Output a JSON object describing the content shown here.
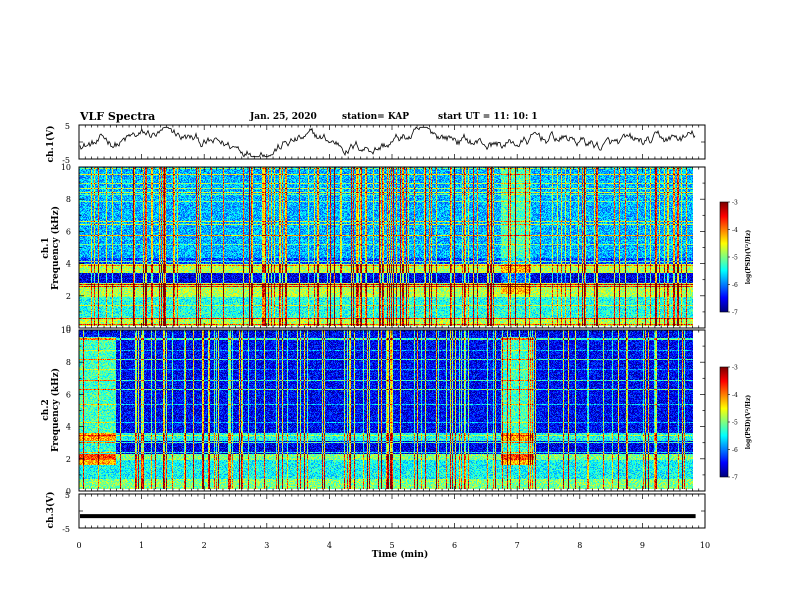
{
  "header": {
    "title": "VLF Spectra",
    "date": "Jan. 25, 2020",
    "station": "station= KAP",
    "start_time": "start  UT =   11: 10: 1"
  },
  "chart_data": [
    {
      "type": "line",
      "name": "ch1-waveform",
      "ylabel": "ch.1(V)",
      "ylim": [
        -5,
        5
      ],
      "yticks": [
        "5",
        "-5"
      ],
      "xlim": [
        0,
        10
      ]
    },
    {
      "type": "heatmap",
      "name": "ch1-spectrogram",
      "ylabel": "ch.1\nFrequency (kHz)",
      "xlim": [
        0,
        10
      ],
      "ylim": [
        0,
        10
      ],
      "yticks": [
        "0",
        "2",
        "4",
        "6",
        "8",
        "10"
      ],
      "colorbar": {
        "label": "log(PSD)(V²/Hz)",
        "range": [
          -7,
          -3
        ],
        "ticks": [
          "-3",
          "-4",
          "-5",
          "-6",
          "-7"
        ]
      }
    },
    {
      "type": "heatmap",
      "name": "ch2-spectrogram",
      "ylabel": "ch.2\nFrequency (kHz)",
      "xlim": [
        0,
        10
      ],
      "ylim": [
        0,
        10
      ],
      "yticks": [
        "0",
        "2",
        "4",
        "6",
        "8",
        "10"
      ],
      "colorbar": {
        "label": "log(PSD)(V²/Hz)",
        "range": [
          -7,
          -3
        ],
        "ticks": [
          "-3",
          "-4",
          "-5",
          "-6",
          "-7"
        ]
      }
    },
    {
      "type": "line",
      "name": "ch3-signal",
      "ylabel": "ch.3(V)",
      "ylim": [
        -5,
        5
      ],
      "yticks": [
        "5",
        "-5"
      ],
      "xlim": [
        0,
        10
      ],
      "level": -1.5
    }
  ],
  "x_axis": {
    "label": "Time (min)",
    "ticks": [
      "0",
      "1",
      "2",
      "3",
      "4",
      "5",
      "6",
      "7",
      "8",
      "9",
      "10"
    ]
  }
}
